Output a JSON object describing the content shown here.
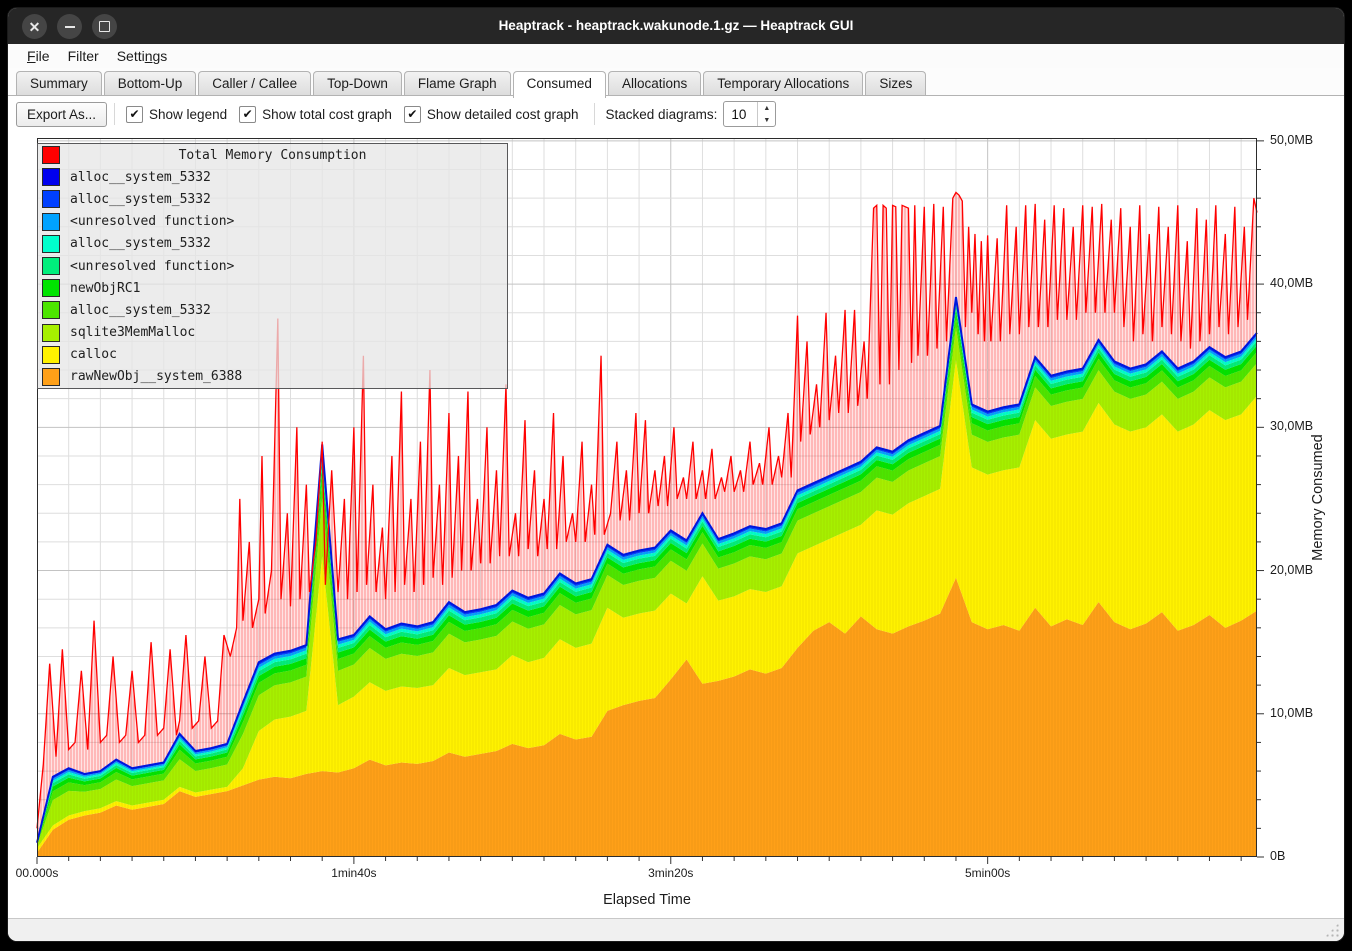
{
  "window": {
    "title": "Heaptrack - heaptrack.wakunode.1.gz — Heaptrack GUI",
    "controls": {
      "close": "close",
      "minimize": "minimize",
      "maximize": "maximize"
    }
  },
  "menubar": {
    "items": [
      {
        "label": "File",
        "accel_index": 0
      },
      {
        "label": "Filter",
        "accel_index": -1
      },
      {
        "label": "Settings",
        "accel_index": 5
      }
    ]
  },
  "tabs": {
    "items": [
      "Summary",
      "Bottom-Up",
      "Caller / Callee",
      "Top-Down",
      "Flame Graph",
      "Consumed",
      "Allocations",
      "Temporary Allocations",
      "Sizes"
    ],
    "active": "Consumed"
  },
  "toolbar": {
    "export_label": "Export As...",
    "checkboxes": [
      {
        "label": "Show legend",
        "checked": true
      },
      {
        "label": "Show total cost graph",
        "checked": true
      },
      {
        "label": "Show detailed cost graph",
        "checked": true
      }
    ],
    "stacked_label": "Stacked diagrams:",
    "stacked_value": "10",
    "check_glyph": "✔"
  },
  "statusbar": {
    "text": ""
  },
  "chart_data": {
    "type": "area",
    "title": "Total Memory Consumption",
    "xlabel": "Elapsed Time",
    "ylabel": "Memory Consumed",
    "xlim": [
      0,
      385
    ],
    "ylim": [
      0,
      50.2
    ],
    "grid": {
      "x_minor_step_s": 10,
      "y_minor_step_mb": 2,
      "x_major_step_s": 100,
      "y_major_step_mb": 10
    },
    "x_ticks": [
      {
        "s": 0,
        "label": "00.000s"
      },
      {
        "s": 100,
        "label": "1min40s"
      },
      {
        "s": 200,
        "label": "3min20s"
      },
      {
        "s": 300,
        "label": "5min00s"
      }
    ],
    "y_ticks": [
      {
        "v": 0,
        "label": "0B"
      },
      {
        "v": 10,
        "label": "10,0MB"
      },
      {
        "v": 20,
        "label": "20,0MB"
      },
      {
        "v": 30,
        "label": "30,0MB"
      },
      {
        "v": 40,
        "label": "40,0MB"
      },
      {
        "v": 50,
        "label": "50,0MB"
      }
    ],
    "legend": [
      {
        "label": "Total Memory Consumption",
        "color": "#ff0000",
        "is_title": true
      },
      {
        "label": "alloc__system_5332",
        "color": "#0000ee"
      },
      {
        "label": "alloc__system_5332",
        "color": "#0040ff"
      },
      {
        "label": "<unresolved function>",
        "color": "#00a2ff"
      },
      {
        "label": "alloc__system_5332",
        "color": "#00ffcc"
      },
      {
        "label": "<unresolved function>",
        "color": "#00ee7c"
      },
      {
        "label": "newObjRC1",
        "color": "#00e400"
      },
      {
        "label": "alloc__system_5332",
        "color": "#4ce600"
      },
      {
        "label": "sqlite3MemMalloc",
        "color": "#a6f000"
      },
      {
        "label": "calloc",
        "color": "#fff200"
      },
      {
        "label": "rawNewObj__system_6388",
        "color": "#ffa018"
      }
    ],
    "units": {
      "x": "seconds",
      "y": "MB"
    },
    "sample_step_s": 5,
    "series": {
      "rawNewObj__system_6388_top": [
        0.3,
        1.9,
        2.6,
        2.9,
        3.1,
        3.6,
        3.3,
        3.5,
        3.7,
        4.6,
        4.2,
        4.4,
        4.6,
        5.0,
        5.4,
        5.6,
        5.5,
        5.8,
        6.0,
        5.9,
        6.2,
        6.8,
        6.4,
        6.6,
        6.5,
        6.7,
        7.3,
        7.0,
        7.2,
        7.4,
        7.9,
        7.6,
        7.8,
        8.6,
        8.2,
        8.4,
        10.2,
        10.6,
        10.9,
        11.1,
        12.4,
        13.8,
        12.1,
        12.3,
        12.6,
        13.1,
        12.8,
        13.2,
        14.6,
        15.8,
        16.4,
        15.6,
        16.8,
        15.9,
        15.6,
        16.1,
        16.5,
        17.0,
        19.5,
        16.4,
        15.9,
        16.2,
        15.8,
        17.4,
        16.1,
        16.6,
        16.2,
        17.8,
        16.4,
        15.9,
        16.3,
        17.1,
        15.8,
        16.2,
        16.9,
        16.0,
        16.5,
        17.2
      ],
      "calloc_top": [
        0.6,
        2.2,
        2.9,
        3.2,
        3.4,
        3.9,
        3.6,
        3.8,
        4.0,
        4.9,
        4.5,
        4.7,
        4.9,
        6.2,
        8.8,
        9.6,
        9.8,
        10.2,
        21.0,
        10.6,
        11.2,
        12.2,
        11.6,
        11.9,
        11.8,
        12.0,
        13.2,
        12.7,
        12.9,
        13.1,
        14.1,
        13.6,
        13.9,
        15.2,
        14.6,
        14.9,
        17.4,
        16.7,
        17.0,
        17.2,
        18.4,
        17.7,
        19.6,
        17.9,
        18.2,
        18.7,
        18.5,
        18.9,
        21.2,
        21.7,
        22.2,
        22.7,
        23.2,
        24.2,
        23.9,
        24.7,
        25.2,
        25.7,
        34.7,
        27.2,
        26.7,
        27.0,
        27.2,
        30.5,
        29.2,
        29.5,
        29.7,
        31.7,
        30.2,
        29.7,
        30.0,
        30.9,
        29.7,
        30.2,
        31.2,
        30.5,
        30.9,
        32.2
      ],
      "stacked_top": [
        1.0,
        5.6,
        6.2,
        5.8,
        6.0,
        6.8,
        6.2,
        6.4,
        6.6,
        8.6,
        7.4,
        7.6,
        7.9,
        10.8,
        13.6,
        14.2,
        14.4,
        14.8,
        28.8,
        15.2,
        15.5,
        16.8,
        15.9,
        16.3,
        16.1,
        16.4,
        17.8,
        17.1,
        17.3,
        17.6,
        18.6,
        18.1,
        18.4,
        19.8,
        19.1,
        19.4,
        21.8,
        21.1,
        21.4,
        21.6,
        22.8,
        22.1,
        24.0,
        22.2,
        22.6,
        23.1,
        22.9,
        23.3,
        25.6,
        26.1,
        26.6,
        27.1,
        27.6,
        28.6,
        28.3,
        29.1,
        29.6,
        30.1,
        39.1,
        31.6,
        31.1,
        31.4,
        31.6,
        34.9,
        33.6,
        33.9,
        34.1,
        36.1,
        34.6,
        34.1,
        34.4,
        35.3,
        34.1,
        34.6,
        35.6,
        34.9,
        35.3,
        36.6
      ]
    },
    "sub_bands_between_calloc_top_and_stacked_top": [
      {
        "name": "sqlite3MemMalloc",
        "color": "#a6f000",
        "from": 0.0,
        "to": 0.52
      },
      {
        "name": "alloc__system_5332",
        "color": "#4ce600",
        "from": 0.52,
        "to": 0.7
      },
      {
        "name": "newObjRC1",
        "color": "#00e400",
        "from": 0.7,
        "to": 0.8
      },
      {
        "name": "<unresolved function>",
        "color": "#00ee7c",
        "from": 0.8,
        "to": 0.87
      },
      {
        "name": "alloc__system_5332",
        "color": "#00ffcc",
        "from": 0.87,
        "to": 0.92
      },
      {
        "name": "<unresolved function>",
        "color": "#00a2ff",
        "from": 0.92,
        "to": 0.96
      },
      {
        "name": "alloc__system_5332",
        "color": "#0040ff",
        "from": 0.96,
        "to": 1.0
      }
    ],
    "total_memory_consumption": [
      [
        0,
        2
      ],
      [
        2,
        6.5
      ],
      [
        4,
        13.5
      ],
      [
        6,
        7
      ],
      [
        8,
        14.5
      ],
      [
        10,
        7.5
      ],
      [
        12,
        8
      ],
      [
        14,
        13
      ],
      [
        16,
        7.5
      ],
      [
        18,
        16.5
      ],
      [
        20,
        8
      ],
      [
        22,
        8.5
      ],
      [
        24,
        14
      ],
      [
        26,
        8
      ],
      [
        28,
        8.5
      ],
      [
        30,
        13
      ],
      [
        32,
        8
      ],
      [
        34,
        8.5
      ],
      [
        36,
        15
      ],
      [
        38,
        8.5
      ],
      [
        40,
        9
      ],
      [
        42,
        14.5
      ],
      [
        44,
        8.5
      ],
      [
        45,
        9.5
      ],
      [
        47,
        15.5
      ],
      [
        49,
        9
      ],
      [
        51,
        9.5
      ],
      [
        53,
        14
      ],
      [
        55,
        9
      ],
      [
        57,
        9.5
      ],
      [
        59,
        15.5
      ],
      [
        61,
        14
      ],
      [
        63,
        16
      ],
      [
        64,
        25
      ],
      [
        65,
        16.5
      ],
      [
        67,
        22
      ],
      [
        68,
        16
      ],
      [
        70,
        18
      ],
      [
        71,
        28
      ],
      [
        72,
        17
      ],
      [
        74,
        20
      ],
      [
        76,
        37.6
      ],
      [
        77,
        18
      ],
      [
        79,
        24
      ],
      [
        80,
        17.5
      ],
      [
        82,
        30
      ],
      [
        83,
        18
      ],
      [
        85,
        26
      ],
      [
        86,
        18.5
      ],
      [
        88,
        22
      ],
      [
        90,
        29
      ],
      [
        91,
        19
      ],
      [
        93,
        27
      ],
      [
        95,
        18.5
      ],
      [
        97,
        25
      ],
      [
        98,
        18
      ],
      [
        100,
        30
      ],
      [
        101,
        18.5
      ],
      [
        103,
        35
      ],
      [
        104,
        19
      ],
      [
        106,
        26
      ],
      [
        107,
        18.5
      ],
      [
        109,
        23
      ],
      [
        110,
        18
      ],
      [
        112,
        28
      ],
      [
        113,
        18.5
      ],
      [
        115,
        32.5
      ],
      [
        116,
        19
      ],
      [
        118,
        25
      ],
      [
        119,
        18.5
      ],
      [
        121,
        29
      ],
      [
        122,
        19
      ],
      [
        124,
        34
      ],
      [
        125,
        19.5
      ],
      [
        127,
        26
      ],
      [
        128,
        19
      ],
      [
        130,
        31
      ],
      [
        131,
        19.5
      ],
      [
        133,
        28
      ],
      [
        134,
        20
      ],
      [
        136,
        32.5
      ],
      [
        137,
        20
      ],
      [
        139,
        25
      ],
      [
        140,
        20.5
      ],
      [
        142,
        30
      ],
      [
        143,
        20.5
      ],
      [
        145,
        27
      ],
      [
        146,
        21
      ],
      [
        148,
        33
      ],
      [
        149,
        21
      ],
      [
        151,
        24
      ],
      [
        152,
        21
      ],
      [
        154,
        30.5
      ],
      [
        155,
        21.5
      ],
      [
        157,
        27
      ],
      [
        158,
        21
      ],
      [
        160,
        25
      ],
      [
        161,
        21.5
      ],
      [
        163,
        31
      ],
      [
        164,
        21.5
      ],
      [
        166,
        28
      ],
      [
        167,
        22
      ],
      [
        169,
        24
      ],
      [
        170,
        22
      ],
      [
        172,
        29
      ],
      [
        173,
        22
      ],
      [
        175,
        26
      ],
      [
        176,
        22.5
      ],
      [
        178,
        35
      ],
      [
        179,
        22.5
      ],
      [
        181,
        24
      ],
      [
        183,
        29
      ],
      [
        184,
        23.5
      ],
      [
        186,
        27
      ],
      [
        187,
        23.5
      ],
      [
        189,
        31
      ],
      [
        190,
        24
      ],
      [
        192,
        30.5
      ],
      [
        193,
        24
      ],
      [
        195,
        27
      ],
      [
        196,
        24.5
      ],
      [
        198,
        28
      ],
      [
        199,
        24.5
      ],
      [
        201,
        30
      ],
      [
        202,
        25
      ],
      [
        204,
        26.5
      ],
      [
        205,
        25
      ],
      [
        207,
        29
      ],
      [
        208,
        25
      ],
      [
        210,
        27
      ],
      [
        211,
        25
      ],
      [
        213,
        28.5
      ],
      [
        214,
        25
      ],
      [
        216,
        26.5
      ],
      [
        217,
        25.5
      ],
      [
        219,
        28
      ],
      [
        220,
        25.5
      ],
      [
        222,
        27
      ],
      [
        223,
        25.5
      ],
      [
        225,
        29
      ],
      [
        226,
        26
      ],
      [
        228,
        27.5
      ],
      [
        229,
        26
      ],
      [
        231,
        30
      ],
      [
        232,
        26
      ],
      [
        234,
        28
      ],
      [
        235,
        26.5
      ],
      [
        237,
        31
      ],
      [
        238,
        26.5
      ],
      [
        240,
        37.8
      ],
      [
        241,
        29
      ],
      [
        243,
        36
      ],
      [
        244,
        29.5
      ],
      [
        246,
        33
      ],
      [
        247,
        30
      ],
      [
        249,
        38
      ],
      [
        250,
        30.5
      ],
      [
        252,
        35
      ],
      [
        253,
        31
      ],
      [
        255,
        38.2
      ],
      [
        256,
        31
      ],
      [
        258,
        38.2
      ],
      [
        259,
        31.5
      ],
      [
        261,
        36
      ],
      [
        262,
        32
      ],
      [
        264,
        45.3
      ],
      [
        265,
        45.5
      ],
      [
        266,
        33
      ],
      [
        267,
        45.5
      ],
      [
        268,
        45.3
      ],
      [
        269,
        33
      ],
      [
        270,
        45.5
      ],
      [
        271,
        45.4
      ],
      [
        272,
        34
      ],
      [
        273,
        45.5
      ],
      [
        275,
        45.3
      ],
      [
        276,
        34.5
      ],
      [
        277,
        45.5
      ],
      [
        278,
        35
      ],
      [
        280,
        45.4
      ],
      [
        281,
        35
      ],
      [
        283,
        45.6
      ],
      [
        284,
        35.5
      ],
      [
        286,
        45.4
      ],
      [
        287,
        36
      ],
      [
        289,
        46
      ],
      [
        290,
        46.4
      ],
      [
        291,
        46.2
      ],
      [
        292,
        45.8
      ],
      [
        293,
        37
      ],
      [
        294,
        44
      ],
      [
        295,
        38
      ],
      [
        296,
        43.5
      ],
      [
        297,
        36.5
      ],
      [
        298,
        43
      ],
      [
        299,
        36
      ],
      [
        300,
        43.4
      ],
      [
        301,
        36
      ],
      [
        303,
        43.2
      ],
      [
        304,
        36
      ],
      [
        306,
        45.5
      ],
      [
        307,
        36.5
      ],
      [
        309,
        44
      ],
      [
        310,
        36.5
      ],
      [
        312,
        45.5
      ],
      [
        313,
        37
      ],
      [
        315,
        45.6
      ],
      [
        316,
        37
      ],
      [
        318,
        44.5
      ],
      [
        319,
        37
      ],
      [
        321,
        45.5
      ],
      [
        322,
        37.5
      ],
      [
        324,
        45.3
      ],
      [
        325,
        37.5
      ],
      [
        327,
        44
      ],
      [
        328,
        37.5
      ],
      [
        330,
        45.5
      ],
      [
        331,
        38
      ],
      [
        333,
        45.4
      ],
      [
        334,
        38
      ],
      [
        336,
        45.6
      ],
      [
        337,
        38
      ],
      [
        339,
        44.5
      ],
      [
        340,
        38
      ],
      [
        342,
        45.3
      ],
      [
        343,
        37
      ],
      [
        345,
        44
      ],
      [
        346,
        36
      ],
      [
        348,
        45.5
      ],
      [
        349,
        36.5
      ],
      [
        351,
        43.5
      ],
      [
        352,
        36
      ],
      [
        354,
        45.4
      ],
      [
        355,
        37
      ],
      [
        357,
        44
      ],
      [
        358,
        36.5
      ],
      [
        360,
        45.5
      ],
      [
        361,
        36
      ],
      [
        363,
        43
      ],
      [
        364,
        35.5
      ],
      [
        366,
        45.3
      ],
      [
        367,
        36
      ],
      [
        369,
        44.5
      ],
      [
        370,
        36.5
      ],
      [
        372,
        45.5
      ],
      [
        373,
        37
      ],
      [
        375,
        43.5
      ],
      [
        376,
        36.5
      ],
      [
        378,
        45.4
      ],
      [
        379,
        37
      ],
      [
        381,
        44
      ],
      [
        382,
        37.5
      ],
      [
        384,
        46
      ],
      [
        385,
        45
      ]
    ],
    "colors": {
      "total_line": "#ff0000",
      "stacked_top_line": "#0016dd",
      "grid_minor": "#dedede",
      "grid_major": "#c3c3c3",
      "frame": "#2b2b2b"
    },
    "legend_position": "top-left"
  }
}
